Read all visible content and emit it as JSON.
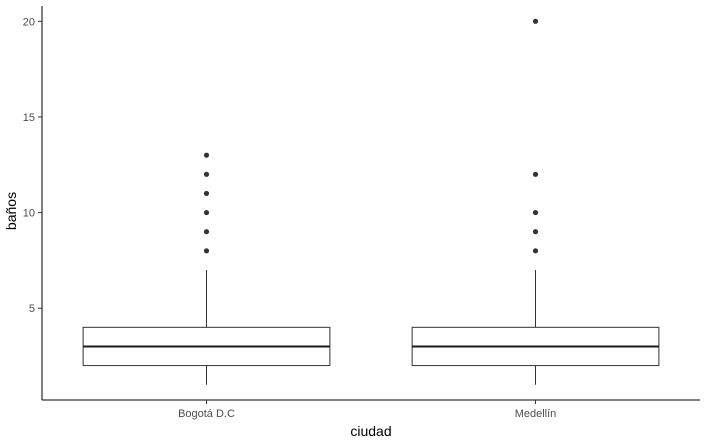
{
  "chart_data": {
    "type": "boxplot",
    "title": "",
    "xlabel": "ciudad",
    "ylabel": "baños",
    "ylim": [
      0.2,
      20.8
    ],
    "yticks": [
      5,
      10,
      15,
      20
    ],
    "grid": false,
    "categories": [
      "Bogotá D.C",
      "Medellín"
    ],
    "boxes": [
      {
        "category": "Bogotá D.C",
        "whisker_low": 1,
        "q1": 2,
        "median": 3,
        "q3": 4,
        "whisker_high": 7,
        "outliers": [
          8,
          9,
          10,
          11,
          12,
          13
        ]
      },
      {
        "category": "Medellín",
        "whisker_low": 1,
        "q1": 2,
        "median": 3,
        "q3": 4,
        "whisker_high": 7,
        "outliers": [
          8,
          9,
          10,
          12,
          20
        ]
      }
    ],
    "colors": {
      "box_line": "#333333",
      "median": "#1a1a1a",
      "outlier": "#333333",
      "axis": "#000000"
    }
  }
}
